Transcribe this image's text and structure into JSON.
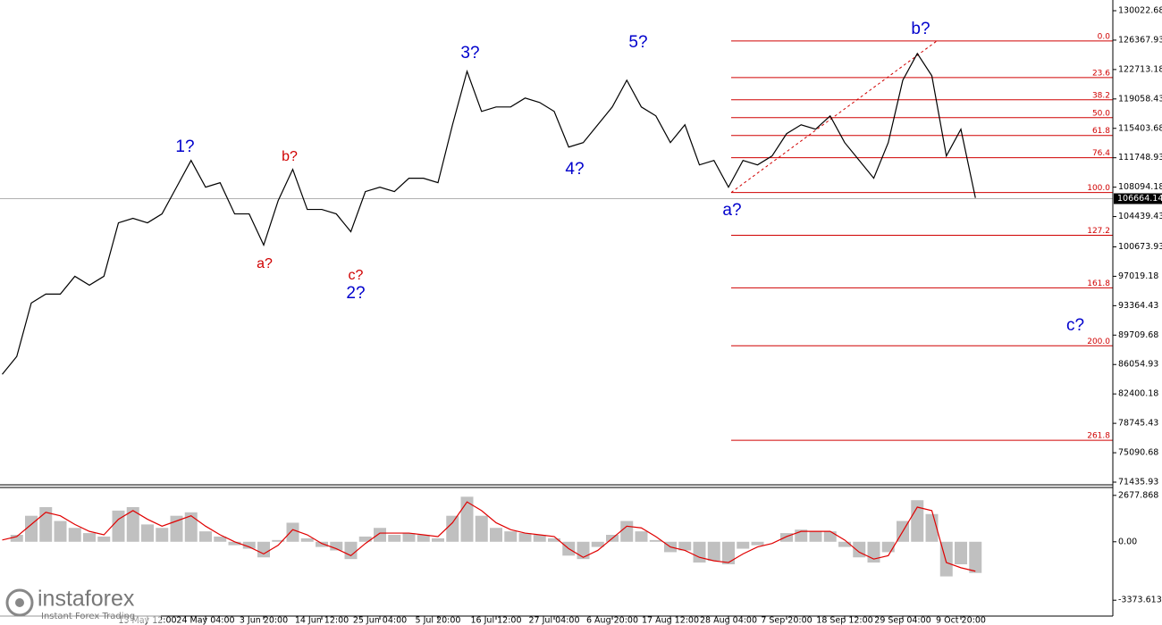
{
  "chart_data": [
    {
      "type": "line",
      "categories": [
        null,
        null,
        null,
        null,
        null,
        null,
        null,
        null,
        null,
        null,
        "13 May 12:00",
        null,
        null,
        null,
        "24 May 04:00",
        null,
        null,
        null,
        "3 Jun 20:00",
        null,
        null,
        null,
        "14 Jun 12:00",
        null,
        null,
        null,
        "25 Jun 04:00",
        null,
        null,
        null,
        "5 Jul 20:00",
        null,
        null,
        null,
        "16 Jul 12:00",
        null,
        null,
        null,
        "27 Jul 04:00",
        null,
        null,
        null,
        "6 Aug 20:00",
        null,
        null,
        null,
        "17 Aug 12:00",
        null,
        null,
        null,
        "28 Aug 04:00",
        null,
        null,
        null,
        "7 Sep 20:00",
        null,
        null,
        null,
        "18 Sep 12:00",
        null,
        null,
        null,
        "29 Sep 04:00",
        null,
        null,
        null,
        "9 Oct 20:00",
        null
      ],
      "series": [
        {
          "color": "#000000",
          "values": [
            84837,
            87052,
            93697,
            94804,
            94804,
            97019,
            95912,
            97019,
            103664,
            104218,
            103664,
            104772,
            108094,
            111417,
            108094,
            108648,
            104772,
            104772,
            100896,
            106433,
            110309,
            105326,
            105326,
            104772,
            102557,
            107541,
            108094,
            107541,
            109202,
            109202,
            108648,
            115847,
            122492,
            117508,
            118062,
            118062,
            119169,
            118616,
            117508,
            113078,
            113632,
            115847,
            118062,
            121384,
            118062,
            116954,
            113632,
            115847,
            110863,
            111417,
            108094,
            111417,
            110863,
            111971,
            114739,
            115847,
            115293,
            116954,
            113632,
            111417,
            109202,
            113632,
            121384,
            124707,
            121938,
            111971,
            115293,
            106765
          ]
        }
      ],
      "ylim": [
        71435.93,
        130022.68
      ],
      "yticks": [
        130022.68,
        126367.93,
        122713.18,
        119058.43,
        115403.68,
        111748.93,
        108094.18,
        104439.43,
        100673.93,
        97019.18,
        93364.43,
        89709.68,
        86054.93,
        82400.18,
        78745.43,
        75090.68,
        71435.93
      ],
      "current_price": 106664.14,
      "current_price_label": "106664.14",
      "fib_levels": [
        {
          "label": "0.0",
          "price": 126257
        },
        {
          "label": "23.6",
          "price": 121716
        },
        {
          "label": "38.2",
          "price": 118948
        },
        {
          "label": "50.0",
          "price": 116733
        },
        {
          "label": "61.8",
          "price": 114518
        },
        {
          "label": "76.4",
          "price": 111749
        },
        {
          "label": "100.0",
          "price": 107430
        },
        {
          "label": "127.2",
          "price": 102114
        },
        {
          "label": "161.8",
          "price": 95580
        },
        {
          "label": "200.0",
          "price": 88381
        },
        {
          "label": "261.8",
          "price": 76642
        }
      ],
      "fib_color": "#d00000",
      "annotations": [
        {
          "text": "1?",
          "color": "#0000cc"
        },
        {
          "text": "b?",
          "color": "#d00000"
        },
        {
          "text": "a?",
          "color": "#d00000"
        },
        {
          "text": "c?",
          "color": "#d00000"
        },
        {
          "text": "2?",
          "color": "#0000cc"
        },
        {
          "text": "3?",
          "color": "#0000cc"
        },
        {
          "text": "4?",
          "color": "#0000cc"
        },
        {
          "text": "5?",
          "color": "#0000cc"
        },
        {
          "text": "a?",
          "color": "#0000cc"
        },
        {
          "text": "b?",
          "color": "#0000cc"
        },
        {
          "text": "c?",
          "color": "#0000cc"
        }
      ]
    },
    {
      "type": "macd",
      "series": [
        {
          "name": "MACD",
          "color": "#c0c0c0",
          "values": [
            0,
            400,
            1500,
            2000,
            1200,
            800,
            500,
            300,
            1800,
            2000,
            1000,
            800,
            1500,
            1700,
            600,
            300,
            -200,
            -400,
            -900,
            100,
            1100,
            200,
            -300,
            -500,
            -1000,
            300,
            800,
            400,
            500,
            400,
            200,
            1500,
            2600,
            1500,
            800,
            600,
            500,
            400,
            200,
            -800,
            -1000,
            -300,
            400,
            1200,
            600,
            100,
            -600,
            -500,
            -1200,
            -1100,
            -1300,
            -400,
            -200,
            0,
            500,
            700,
            600,
            600,
            -300,
            -900,
            -1200,
            -600,
            1200,
            2400,
            1600,
            -2000,
            -1300,
            -1800
          ]
        },
        {
          "name": "Signal",
          "color": "#e00000",
          "values": [
            100,
            300,
            1000,
            1700,
            1500,
            1000,
            600,
            400,
            1300,
            1800,
            1300,
            900,
            1200,
            1500,
            900,
            400,
            0,
            -300,
            -700,
            -200,
            700,
            400,
            -100,
            -400,
            -800,
            -100,
            500,
            500,
            500,
            400,
            300,
            1100,
            2300,
            1800,
            1100,
            700,
            500,
            400,
            300,
            -400,
            -900,
            -500,
            200,
            900,
            800,
            300,
            -300,
            -500,
            -900,
            -1100,
            -1200,
            -700,
            -300,
            -100,
            300,
            600,
            600,
            600,
            100,
            -600,
            -1000,
            -800,
            600,
            2000,
            1800,
            -1200,
            -1500,
            -1700
          ]
        }
      ],
      "ylim": [
        -4290,
        3030
      ],
      "yticks": [
        2677.868,
        {
          "value": 0,
          "label": "0.00"
        },
        -3373.613
      ]
    }
  ],
  "logo": {
    "brand": "instaforex",
    "tagline": "Instant Forex Trading"
  }
}
